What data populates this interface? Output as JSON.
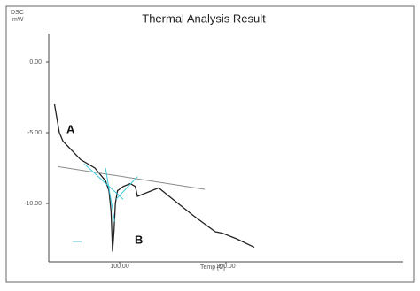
{
  "chart_data": {
    "type": "line",
    "title": "Thermal Analysis Result",
    "ylabel": "DSC",
    "yunit": "mW",
    "xlabel": "Temp [C]",
    "annotations": [
      "A",
      "B"
    ],
    "xlim": [
      33.3,
      366.7
    ],
    "ylim": [
      -14,
      2
    ],
    "xticks": [
      {
        "value": 100,
        "label": "100.00"
      },
      {
        "value": 200,
        "label": "200.00"
      }
    ],
    "yticks": [
      {
        "value": 0,
        "label": "0.00"
      },
      {
        "value": -5,
        "label": "-5.00"
      },
      {
        "value": -10,
        "label": "-10.00"
      }
    ],
    "series": [
      {
        "color": "#222222",
        "x": [
          38.7,
          43.3,
          46.7,
          63.3,
          76.7,
          86.7,
          90,
          92,
          93.3,
          94.7,
          96,
          98,
          103.3,
          110,
          114.7,
          116.7,
          130,
          136.7,
          150,
          170,
          190,
          196.7,
          210,
          226.7
        ],
        "values": [
          -3.0,
          -5.0,
          -5.6,
          -6.9,
          -7.5,
          -8.4,
          -9.1,
          -10.6,
          -13.4,
          -11.9,
          -10.0,
          -9.1,
          -8.8,
          -8.6,
          -8.8,
          -9.5,
          -9.1,
          -8.9,
          -9.7,
          -10.9,
          -12.0,
          -12.1,
          -12.5,
          -13.1
        ]
      },
      {
        "color": "#8a8a8a",
        "x": [
          42,
          180
        ],
        "values": [
          -7.4,
          -9.0
        ]
      },
      {
        "color": "#3cc8d8",
        "x": [
          66.7,
          103.3
        ],
        "values": [
          -7.2,
          -9.7
        ]
      },
      {
        "color": "#3cc8d8",
        "x": [
          86.7,
          95.3
        ],
        "values": [
          -7.5,
          -11.3
        ]
      },
      {
        "color": "#3cc8d8",
        "x": [
          96.7,
          116.7
        ],
        "values": [
          -9.7,
          -8.1
        ]
      }
    ]
  }
}
